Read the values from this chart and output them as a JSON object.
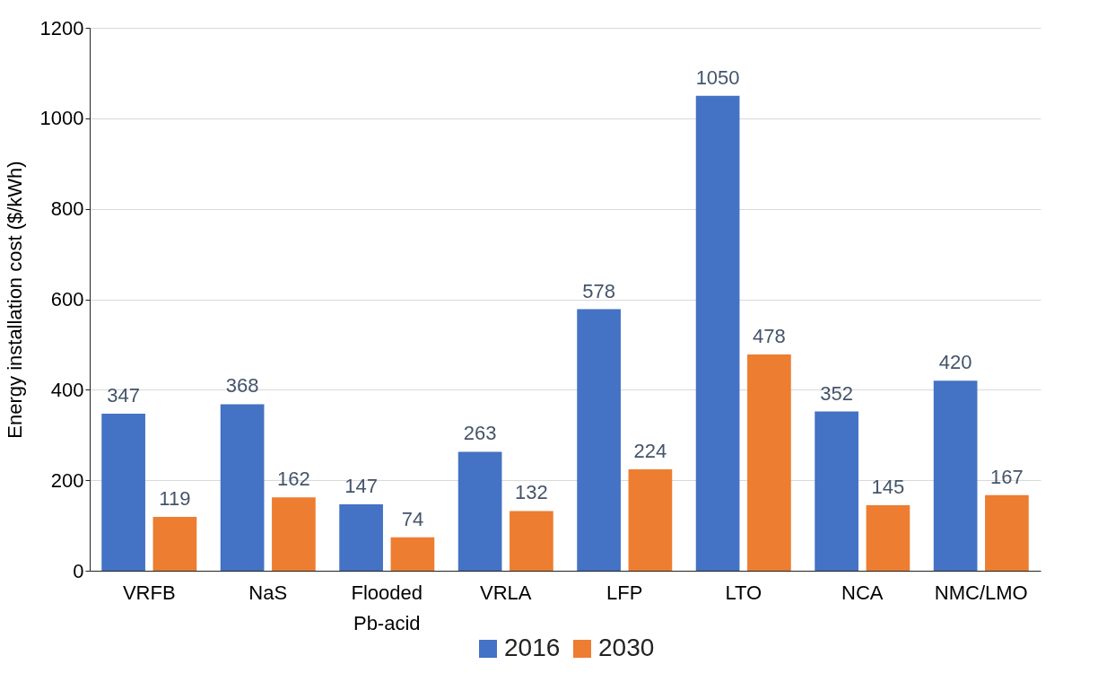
{
  "chart_data": {
    "type": "bar",
    "ylabel": "Energy installation cost ($/kWh)",
    "categories": [
      "VRFB",
      "NaS",
      "Flooded Pb-acid",
      "VRLA",
      "LFP",
      "LTO",
      "NCA",
      "NMC/LMO"
    ],
    "series": [
      {
        "name": "2016",
        "color": "#4472c4",
        "values": [
          347,
          368,
          147,
          263,
          578,
          1050,
          352,
          420
        ]
      },
      {
        "name": "2030",
        "color": "#ed7d31",
        "values": [
          119,
          162,
          74,
          132,
          224,
          478,
          145,
          167
        ]
      }
    ],
    "ylim": [
      0,
      1200
    ],
    "yticks": [
      0,
      200,
      400,
      600,
      800,
      1000,
      1200
    ],
    "grid": "y",
    "legend": "bottom",
    "data_labels": true
  }
}
